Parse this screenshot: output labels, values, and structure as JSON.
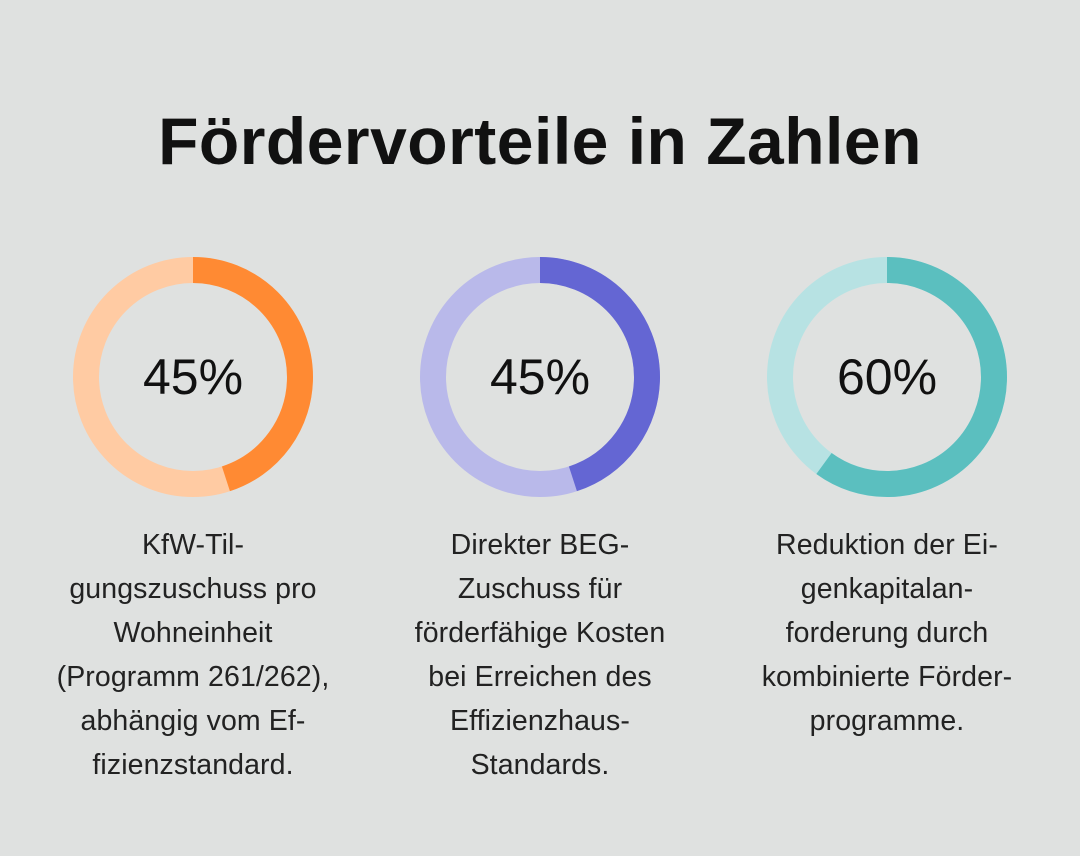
{
  "chart_data": {
    "type": "donut",
    "title": "Fördervorteile in Zahlen",
    "items": [
      {
        "value": 45,
        "label": "45%",
        "description": "KfW-Til-\ngungszuschuss pro\nWohneinheit\n(Programm 261/262),\nabhängig vom Ef-\nfizienzstandard.",
        "color": "#ff8a33",
        "track_color": "#ffcba3"
      },
      {
        "value": 45,
        "label": "45%",
        "description": "Direkter BEG-\nZuschuss für\nförderfähige Kosten\nbei Erreichen des\nEffizienzhaus-\nStandards.",
        "color": "#6466d3",
        "track_color": "#b9b9ea"
      },
      {
        "value": 60,
        "label": "60%",
        "description": "Reduktion der Ei-\ngenkapitalan-\nforderung durch\nkombinierte Förder-\nprogramme.",
        "color": "#5bbfbf",
        "track_color": "#b7e2e3"
      }
    ]
  }
}
